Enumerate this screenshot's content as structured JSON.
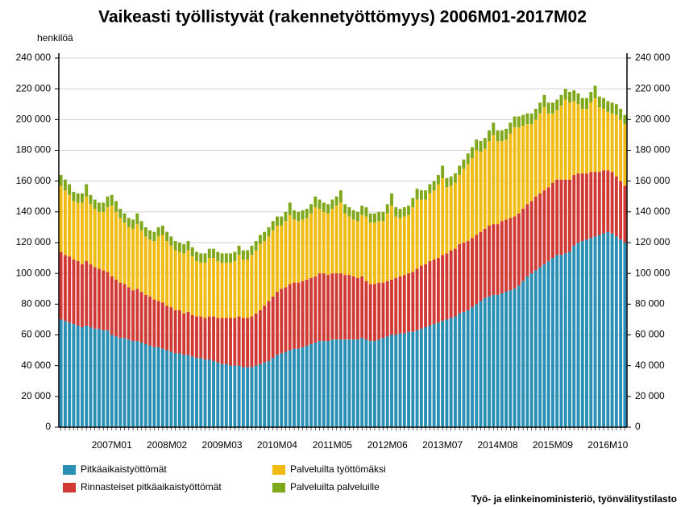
{
  "chart_data": {
    "type": "stacked_bar",
    "title": "Vaikeasti työllistyvät (rakennetyöttömyys) 2006M01-2017M02",
    "ylabel": "henkilöä",
    "source": "Työ- ja elinkeinoministeriö, työnvälitystilasto",
    "categories": [
      null,
      null,
      null,
      null,
      null,
      null,
      null,
      null,
      null,
      null,
      null,
      null,
      "2007M01",
      null,
      null,
      null,
      null,
      null,
      null,
      null,
      null,
      null,
      null,
      null,
      null,
      "2008M02",
      null,
      null,
      null,
      null,
      null,
      null,
      null,
      null,
      null,
      null,
      null,
      null,
      "2009M03",
      null,
      null,
      null,
      null,
      null,
      null,
      null,
      null,
      null,
      null,
      null,
      null,
      "2010M04",
      null,
      null,
      null,
      null,
      null,
      null,
      null,
      null,
      null,
      null,
      null,
      null,
      "2011M05",
      null,
      null,
      null,
      null,
      null,
      null,
      null,
      null,
      null,
      null,
      null,
      null,
      "2012M06",
      null,
      null,
      null,
      null,
      null,
      null,
      null,
      null,
      null,
      null,
      null,
      null,
      "2013M07",
      null,
      null,
      null,
      null,
      null,
      null,
      null,
      null,
      null,
      null,
      null,
      null,
      "2014M08",
      null,
      null,
      null,
      null,
      null,
      null,
      null,
      null,
      null,
      null,
      null,
      null,
      "2015M09",
      null,
      null,
      null,
      null,
      null,
      null,
      null,
      null,
      null,
      null,
      null,
      null,
      "2016M10",
      null,
      null,
      null,
      null
    ],
    "series": [
      {
        "name": "Pitkäaikaistyöttömät",
        "color": "#2a8fb5",
        "values": [
          70000,
          69000,
          68000,
          67000,
          66000,
          65000,
          66000,
          65000,
          64000,
          64000,
          63000,
          63000,
          60000,
          59000,
          58000,
          58000,
          57000,
          56000,
          56000,
          55000,
          54000,
          53000,
          52000,
          52000,
          51000,
          50000,
          49000,
          48000,
          48000,
          47000,
          47000,
          46000,
          45000,
          45000,
          44000,
          44000,
          43000,
          42000,
          41000,
          41000,
          40000,
          40000,
          40000,
          39000,
          39000,
          39000,
          40000,
          41000,
          42000,
          43000,
          45000,
          47000,
          48000,
          49000,
          50000,
          51000,
          51000,
          52000,
          53000,
          54000,
          55000,
          56000,
          56000,
          56000,
          57000,
          57000,
          57000,
          57000,
          57000,
          57000,
          57000,
          58000,
          57000,
          56000,
          56000,
          57000,
          58000,
          59000,
          60000,
          60000,
          61000,
          61000,
          62000,
          62000,
          63000,
          64000,
          65000,
          66000,
          67000,
          68000,
          69000,
          70000,
          71000,
          72000,
          74000,
          75000,
          76000,
          78000,
          80000,
          82000,
          84000,
          85000,
          86000,
          86000,
          87000,
          88000,
          89000,
          90000,
          92000,
          95000,
          98000,
          100000,
          102000,
          104000,
          106000,
          108000,
          110000,
          112000,
          112000,
          113000,
          114000,
          118000,
          120000,
          121000,
          122000,
          123000,
          124000,
          125000,
          126000,
          127000,
          126000,
          124000,
          122000,
          120000
        ]
      },
      {
        "name": "Rinnasteiset pitkäaikaistyöttömät",
        "color": "#d13a34",
        "values": [
          44000,
          43000,
          43000,
          42000,
          42000,
          41000,
          42000,
          41000,
          40000,
          39000,
          39000,
          38000,
          38000,
          37000,
          36000,
          35000,
          34000,
          33000,
          34000,
          33000,
          32000,
          32000,
          31000,
          30000,
          30000,
          29000,
          29000,
          28000,
          28000,
          27000,
          28000,
          27000,
          27000,
          27000,
          27000,
          28000,
          29000,
          29000,
          30000,
          30000,
          31000,
          31000,
          32000,
          32000,
          32000,
          33000,
          34000,
          35000,
          37000,
          39000,
          40000,
          41000,
          42000,
          42000,
          43000,
          43000,
          43000,
          43000,
          43000,
          43000,
          43000,
          44000,
          44000,
          43000,
          43000,
          43000,
          43000,
          42000,
          42000,
          41000,
          40000,
          40000,
          38000,
          37000,
          37000,
          37000,
          36000,
          36000,
          36000,
          37000,
          37000,
          38000,
          38000,
          39000,
          40000,
          41000,
          41000,
          42000,
          42000,
          42000,
          43000,
          43000,
          44000,
          44000,
          45000,
          45000,
          45000,
          45000,
          45000,
          45000,
          45000,
          46000,
          46000,
          46000,
          47000,
          47000,
          47000,
          47000,
          47000,
          47000,
          47000,
          47000,
          48000,
          48000,
          48000,
          48000,
          49000,
          49000,
          49000,
          48000,
          47000,
          46000,
          45000,
          44000,
          43000,
          43000,
          42000,
          41000,
          41000,
          40000,
          40000,
          39000,
          38000,
          37000
        ]
      },
      {
        "name": "Palveluilta työttömäksi",
        "color": "#f0bb12",
        "values": [
          43000,
          42000,
          40000,
          38000,
          38000,
          40000,
          42000,
          39000,
          38000,
          37000,
          38000,
          42000,
          46000,
          44000,
          42000,
          40000,
          39000,
          40000,
          42000,
          40000,
          38000,
          37000,
          38000,
          42000,
          44000,
          42000,
          40000,
          39000,
          38000,
          39000,
          40000,
          38000,
          36000,
          35000,
          36000,
          38000,
          38000,
          37000,
          36000,
          36000,
          36000,
          37000,
          40000,
          38000,
          38000,
          40000,
          41000,
          43000,
          42000,
          42000,
          43000,
          43000,
          41000,
          43000,
          45000,
          41000,
          40000,
          40000,
          40000,
          42000,
          45000,
          42000,
          40000,
          40000,
          42000,
          44000,
          46000,
          40000,
          38000,
          37000,
          37000,
          40000,
          42000,
          40000,
          40000,
          40000,
          40000,
          44000,
          48000,
          40000,
          38000,
          38000,
          38000,
          42000,
          45000,
          43000,
          42000,
          44000,
          45000,
          48000,
          50000,
          43000,
          42000,
          43000,
          45000,
          48000,
          50000,
          52000,
          55000,
          52000,
          52000,
          55000,
          58000,
          54000,
          52000,
          52000,
          55000,
          58000,
          56000,
          54000,
          52000,
          50000,
          50000,
          52000,
          54000,
          48000,
          45000,
          45000,
          48000,
          52000,
          50000,
          48000,
          45000,
          42000,
          42000,
          45000,
          48000,
          42000,
          40000,
          38000,
          38000,
          40000,
          40000,
          40000
        ]
      },
      {
        "name": "Palveluilta palveluille",
        "color": "#7ea81a",
        "values": [
          7000,
          7000,
          7000,
          6000,
          6000,
          6000,
          8000,
          6000,
          6000,
          6000,
          6000,
          7000,
          7000,
          7000,
          6000,
          6000,
          6000,
          6000,
          7000,
          6000,
          6000,
          6000,
          6000,
          6000,
          6000,
          6000,
          6000,
          6000,
          6000,
          6000,
          6000,
          6000,
          6000,
          6000,
          6000,
          6000,
          6000,
          6000,
          6000,
          6000,
          6000,
          6000,
          6000,
          6000,
          6000,
          6000,
          6000,
          6000,
          6000,
          6000,
          6000,
          6000,
          6000,
          6000,
          8000,
          6000,
          6000,
          6000,
          6000,
          6000,
          7000,
          6000,
          6000,
          6000,
          6000,
          6000,
          8000,
          6000,
          6000,
          6000,
          6000,
          6000,
          6000,
          6000,
          6000,
          6000,
          6000,
          6000,
          8000,
          6000,
          6000,
          6000,
          6000,
          6000,
          7000,
          6000,
          6000,
          6000,
          6000,
          6000,
          8000,
          6000,
          6000,
          6000,
          6000,
          6000,
          7000,
          7000,
          7000,
          7000,
          7000,
          7000,
          8000,
          7000,
          7000,
          7000,
          7000,
          7000,
          7000,
          7000,
          7000,
          7000,
          7000,
          7000,
          8000,
          7000,
          7000,
          7000,
          7000,
          7000,
          7000,
          7000,
          7000,
          7000,
          7000,
          7000,
          8000,
          7000,
          7000,
          7000,
          7000,
          7000,
          7000,
          6000
        ]
      }
    ],
    "ylim": [
      0,
      240000
    ],
    "yticks": [
      0,
      {
        "value": 20000,
        "label": "20 000"
      },
      {
        "value": 40000,
        "label": "40 000"
      },
      {
        "value": 60000,
        "label": "60 000"
      },
      {
        "value": 80000,
        "label": "80 000"
      },
      {
        "value": 100000,
        "label": "100 000"
      },
      {
        "value": 120000,
        "label": "120 000"
      },
      {
        "value": 140000,
        "label": "140 000"
      },
      {
        "value": 160000,
        "label": "160 000"
      },
      {
        "value": 180000,
        "label": "180 000"
      },
      {
        "value": 200000,
        "label": "200 000"
      },
      {
        "value": 220000,
        "label": "220 000"
      },
      {
        "value": 240000,
        "label": "240 000"
      }
    ],
    "grid": true
  }
}
